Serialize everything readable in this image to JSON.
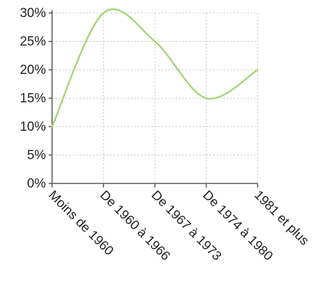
{
  "chart_data": {
    "type": "line",
    "title": "",
    "xlabel": "",
    "ylabel": "",
    "categories": [
      "Moins de 1960",
      "De 1960 à 1966",
      "De 1967 à 1973",
      "De 1974 à 1980",
      "1981 et plus"
    ],
    "series": [
      {
        "values": [
          10,
          30,
          25,
          15,
          20
        ],
        "color": "#a5d67a"
      }
    ],
    "ylim": [
      0,
      30
    ],
    "yticks": [
      0,
      5,
      10,
      15,
      20,
      25,
      30
    ],
    "ytick_labels": [
      "0%",
      "5%",
      "10%",
      "15%",
      "20%",
      "25%",
      "30%"
    ],
    "smooth": true,
    "grid": true,
    "legend": "none"
  }
}
